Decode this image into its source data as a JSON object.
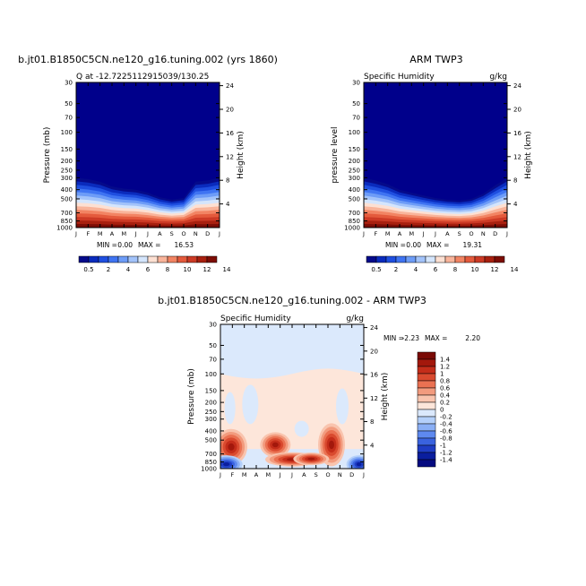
{
  "chart_data": [
    {
      "type": "heatmap",
      "title": "b.jt01.B1850C5CN.ne120_g16.tuning.002 (yrs 1860)",
      "subtitle_left": "Q at -12.7225112915039/130.25",
      "ylabel": "Pressure (mb)",
      "ylabel_right": "Height (km)",
      "x_ticks": [
        "J",
        "F",
        "M",
        "A",
        "M",
        "J",
        "J",
        "A",
        "S",
        "O",
        "N",
        "D",
        "J"
      ],
      "y_ticks": [
        "30",
        "50",
        "70",
        "100",
        "150",
        "200",
        "250",
        "300",
        "400",
        "500",
        "700",
        "850",
        "1000"
      ],
      "y_ticks_right": [
        "24",
        "20",
        "16",
        "12",
        "8",
        "4"
      ],
      "ylim": [
        1000,
        30
      ],
      "min_label": "MIN =",
      "min_value": "0.00",
      "max_label": "MAX =",
      "max_value": "16.53",
      "moist_top_mb": [
        300,
        310,
        330,
        370,
        390,
        400,
        430,
        480,
        510,
        490,
        330,
        320,
        300
      ],
      "colorbar_ticks": [
        "0.5",
        "2",
        "4",
        "6",
        "8",
        "10",
        "12",
        "14"
      ]
    },
    {
      "type": "heatmap",
      "title": "ARM TWP3",
      "subtitle_left": "Specific Humidity",
      "subtitle_right": "g/kg",
      "ylabel": "pressure level",
      "ylabel_right": "Height (km)",
      "x_ticks": [
        "J",
        "F",
        "M",
        "A",
        "M",
        "J",
        "J",
        "A",
        "S",
        "O",
        "N",
        "D",
        "J"
      ],
      "y_ticks": [
        "30",
        "50",
        "70",
        "100",
        "150",
        "200",
        "250",
        "300",
        "400",
        "500",
        "700",
        "850",
        "1000"
      ],
      "y_ticks_right": [
        "24",
        "20",
        "16",
        "12",
        "8",
        "4"
      ],
      "ylim": [
        1000,
        30
      ],
      "min_label": "MIN =",
      "min_value": "0.00",
      "max_label": "MAX =",
      "max_value": "19.31",
      "moist_top_mb": [
        300,
        320,
        350,
        400,
        430,
        460,
        490,
        510,
        520,
        500,
        440,
        360,
        300
      ],
      "colorbar_ticks": [
        "0.5",
        "2",
        "4",
        "6",
        "8",
        "10",
        "12",
        "14"
      ]
    },
    {
      "type": "heatmap",
      "title": "b.jt01.B1850C5CN.ne120_g16.tuning.002 - ARM TWP3",
      "subtitle_left": "Specific Humidity",
      "subtitle_right": "g/kg",
      "ylabel": "Pressure (mb)",
      "ylabel_right": "Height (km)",
      "x_ticks": [
        "J",
        "F",
        "M",
        "A",
        "M",
        "J",
        "J",
        "A",
        "S",
        "O",
        "N",
        "D",
        "J"
      ],
      "y_ticks": [
        "30",
        "50",
        "70",
        "100",
        "150",
        "200",
        "250",
        "300",
        "400",
        "500",
        "700",
        "850",
        "1000"
      ],
      "y_ticks_right": [
        "24",
        "20",
        "16",
        "12",
        "8",
        "4"
      ],
      "ylim": [
        1000,
        30
      ],
      "min_label": "MIN =",
      "min_value": "-2.23",
      "max_label": "MAX =",
      "max_value": "2.20",
      "colorbar_ticks": [
        "1.4",
        "1.2",
        "1",
        "0.8",
        "0.6",
        "0.4",
        "0.2",
        "0",
        "-0.2",
        "-0.4",
        "-0.6",
        "-0.8",
        "-1",
        "-1.2",
        "-1.4"
      ]
    }
  ],
  "colors": {
    "abs_scale": [
      "#050a8a",
      "#0a2bbd",
      "#1f4fe0",
      "#3f74f2",
      "#6d9cf7",
      "#a2c3fa",
      "#d4e5fc",
      "#fde0d2",
      "#f9b49a",
      "#f28463",
      "#e45a3c",
      "#cc3a25",
      "#a8200f",
      "#7d0d05"
    ],
    "diff_scale": [
      "#7a0a05",
      "#a3180c",
      "#c42d1a",
      "#d94a2f",
      "#ea7152",
      "#f29b7e",
      "#f9c4ae",
      "#fde6da",
      "#dbe9fc",
      "#b4d0fa",
      "#8aaff5",
      "#5e89ef",
      "#3a63df",
      "#1f3dc4",
      "#0a1e9e",
      "#050a80"
    ],
    "deep_blue": "#00008b"
  }
}
